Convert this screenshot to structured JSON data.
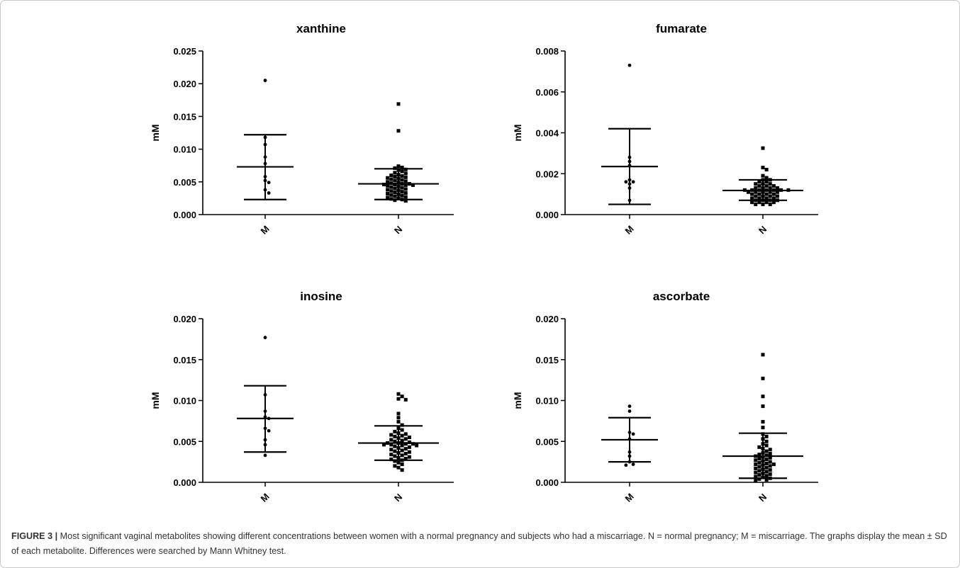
{
  "chart_data": [
    {
      "type": "scatter",
      "title": "xanthine",
      "ylabel": "mM",
      "categories": [
        "M",
        "N"
      ],
      "ylim": [
        0,
        0.025
      ],
      "yticks": [
        "0.000",
        "0.005",
        "0.010",
        "0.015",
        "0.020",
        "0.025"
      ],
      "groups": [
        {
          "name": "M",
          "marker": "circle",
          "mean": 0.0073,
          "sd_low": 0.0023,
          "sd_high": 0.0122,
          "values": [
            0.0205,
            0.0118,
            0.0107,
            0.0088,
            0.0078,
            0.0058,
            0.0052,
            0.0049,
            0.0038,
            0.0033
          ]
        },
        {
          "name": "N",
          "marker": "square",
          "mean": 0.0047,
          "sd_low": 0.0023,
          "sd_high": 0.007,
          "values": [
            0.0169,
            0.0128,
            0.0074,
            0.0072,
            0.0071,
            0.0069,
            0.0068,
            0.0066,
            0.0064,
            0.0063,
            0.0061,
            0.006,
            0.0059,
            0.0058,
            0.0057,
            0.0056,
            0.0055,
            0.0054,
            0.0053,
            0.0052,
            0.0051,
            0.005,
            0.0049,
            0.0048,
            0.0047,
            0.0047,
            0.0046,
            0.0046,
            0.0045,
            0.0045,
            0.0044,
            0.0043,
            0.0042,
            0.0041,
            0.004,
            0.0039,
            0.0038,
            0.0037,
            0.0036,
            0.0035,
            0.0034,
            0.0033,
            0.0032,
            0.0031,
            0.003,
            0.0029,
            0.0028,
            0.0027,
            0.0026,
            0.0025,
            0.0024,
            0.0023,
            0.0022,
            0.0021
          ]
        }
      ]
    },
    {
      "type": "scatter",
      "title": "fumarate",
      "ylabel": "mM",
      "categories": [
        "M",
        "N"
      ],
      "ylim": [
        0,
        0.008
      ],
      "yticks": [
        "0.000",
        "0.002",
        "0.004",
        "0.006",
        "0.008"
      ],
      "groups": [
        {
          "name": "M",
          "marker": "circle",
          "mean": 0.00235,
          "sd_low": 0.0005,
          "sd_high": 0.0042,
          "values": [
            0.0073,
            0.0028,
            0.0026,
            0.0024,
            0.0017,
            0.0016,
            0.0016,
            0.0015,
            0.0013,
            0.0007
          ]
        },
        {
          "name": "N",
          "marker": "square",
          "mean": 0.00118,
          "sd_low": 0.0007,
          "sd_high": 0.0017,
          "values": [
            0.00325,
            0.0023,
            0.0022,
            0.0019,
            0.0018,
            0.0017,
            0.0017,
            0.0016,
            0.0016,
            0.0015,
            0.0015,
            0.0015,
            0.0014,
            0.0014,
            0.0014,
            0.0013,
            0.0013,
            0.0013,
            0.0013,
            0.0012,
            0.0012,
            0.0012,
            0.0012,
            0.0012,
            0.0012,
            0.0012,
            0.0011,
            0.0011,
            0.0011,
            0.0011,
            0.0011,
            0.001,
            0.001,
            0.001,
            0.001,
            0.0009,
            0.0009,
            0.0009,
            0.0009,
            0.0008,
            0.0008,
            0.0008,
            0.0008,
            0.0007,
            0.0007,
            0.0007,
            0.0007,
            0.0006,
            0.0006,
            0.0006,
            0.0006,
            0.0005,
            0.0005,
            0.0005
          ]
        }
      ]
    },
    {
      "type": "scatter",
      "title": "inosine",
      "ylabel": "mM",
      "categories": [
        "M",
        "N"
      ],
      "ylim": [
        0,
        0.02
      ],
      "yticks": [
        "0.000",
        "0.005",
        "0.010",
        "0.015",
        "0.020"
      ],
      "groups": [
        {
          "name": "M",
          "marker": "circle",
          "mean": 0.0078,
          "sd_low": 0.0037,
          "sd_high": 0.0118,
          "values": [
            0.0177,
            0.0107,
            0.0087,
            0.008,
            0.0078,
            0.0066,
            0.0063,
            0.0052,
            0.0046,
            0.0033
          ]
        },
        {
          "name": "N",
          "marker": "square",
          "mean": 0.0048,
          "sd_low": 0.0027,
          "sd_high": 0.0069,
          "values": [
            0.0108,
            0.0105,
            0.0102,
            0.0101,
            0.0084,
            0.0079,
            0.0074,
            0.007,
            0.0066,
            0.0064,
            0.0062,
            0.006,
            0.0059,
            0.0058,
            0.0057,
            0.0056,
            0.0055,
            0.0054,
            0.0053,
            0.0052,
            0.0051,
            0.005,
            0.0049,
            0.0048,
            0.0048,
            0.0047,
            0.0047,
            0.0046,
            0.0046,
            0.0045,
            0.0045,
            0.0044,
            0.0043,
            0.0042,
            0.0041,
            0.004,
            0.0039,
            0.0038,
            0.0037,
            0.0036,
            0.0035,
            0.0034,
            0.0033,
            0.0032,
            0.0031,
            0.003,
            0.0029,
            0.0028,
            0.0027,
            0.0026,
            0.0024,
            0.0022,
            0.002,
            0.0018,
            0.0015
          ]
        }
      ]
    },
    {
      "type": "scatter",
      "title": "ascorbate",
      "ylabel": "mM",
      "categories": [
        "M",
        "N"
      ],
      "ylim": [
        0,
        0.02
      ],
      "yticks": [
        "0.000",
        "0.005",
        "0.010",
        "0.015",
        "0.020"
      ],
      "groups": [
        {
          "name": "M",
          "marker": "circle",
          "mean": 0.0052,
          "sd_low": 0.0025,
          "sd_high": 0.0079,
          "values": [
            0.0093,
            0.0087,
            0.0061,
            0.0059,
            0.0053,
            0.0037,
            0.0032,
            0.0025,
            0.0022,
            0.0021
          ]
        },
        {
          "name": "N",
          "marker": "square",
          "mean": 0.0032,
          "sd_low": 0.0005,
          "sd_high": 0.006,
          "values": [
            0.0156,
            0.0127,
            0.0105,
            0.0093,
            0.0074,
            0.0067,
            0.0059,
            0.0056,
            0.0053,
            0.005,
            0.0047,
            0.0045,
            0.0043,
            0.0041,
            0.004,
            0.0038,
            0.0036,
            0.0035,
            0.0034,
            0.0033,
            0.0032,
            0.0031,
            0.003,
            0.0029,
            0.0028,
            0.0027,
            0.0026,
            0.0025,
            0.0024,
            0.0023,
            0.0022,
            0.0022,
            0.0021,
            0.002,
            0.0019,
            0.0018,
            0.0017,
            0.0016,
            0.0015,
            0.0014,
            0.0013,
            0.0012,
            0.0011,
            0.001,
            0.0009,
            0.0008,
            0.0007,
            0.0006,
            0.0005,
            0.0004,
            0.0003,
            0.0002
          ]
        }
      ]
    }
  ],
  "caption": {
    "label": "FIGURE 3 |",
    "text": " Most significant vaginal metabolites showing different concentrations between women with a normal pregnancy and subjects who had a miscarriage. N = normal pregnancy; M = miscarriage. The graphs display the mean ± SD of each metabolite. Differences were searched by Mann Whitney test."
  },
  "colors": {
    "ink": "#000000",
    "caption": "#333333",
    "frame": "#c7c7c7"
  }
}
